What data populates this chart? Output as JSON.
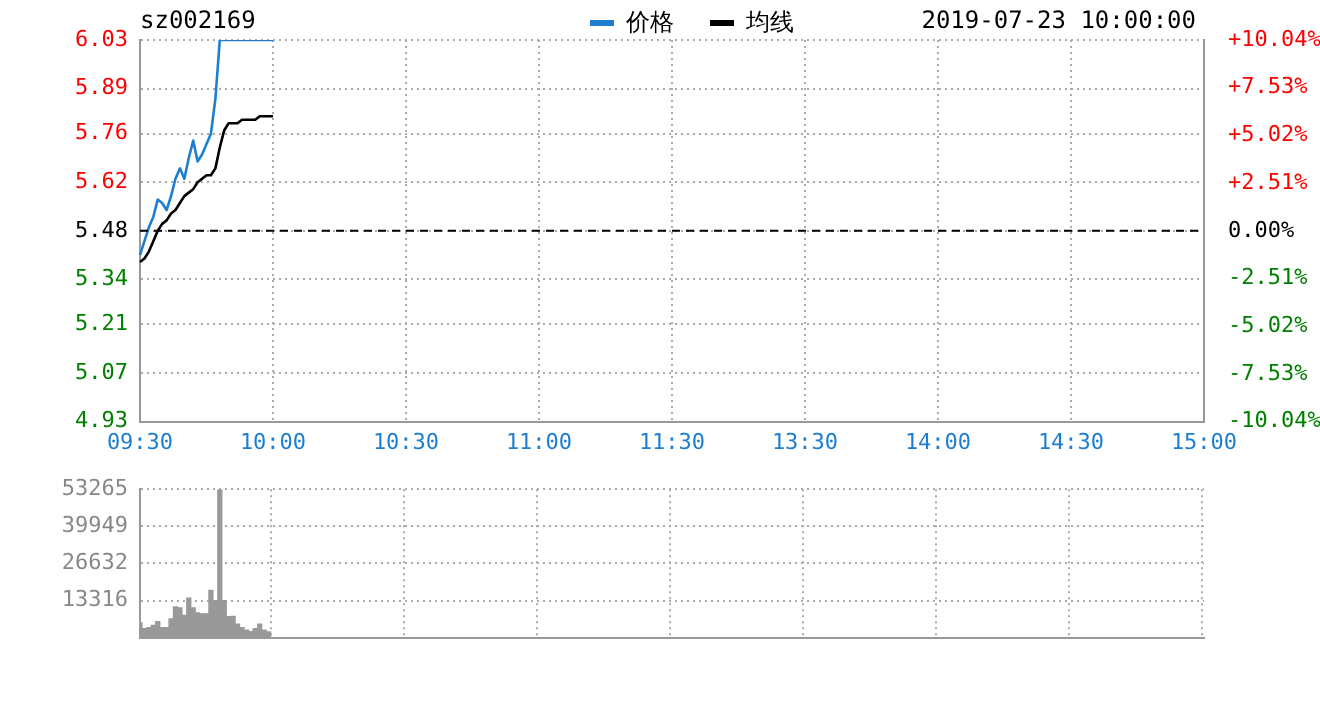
{
  "chart_data": [
    {
      "type": "line",
      "title": "sz002169",
      "annotations": [
        "2019-07-23 10:00:00"
      ],
      "legend": "top",
      "grid": true,
      "line_style": "solid",
      "marker": "none",
      "categories": [
        "09:30",
        null,
        null,
        null,
        null,
        null,
        null,
        null,
        null,
        null,
        null,
        null,
        null,
        null,
        null,
        null,
        null,
        null,
        null,
        null,
        null,
        null,
        null,
        null,
        null,
        null,
        null,
        null,
        null,
        null,
        "10:00",
        null,
        null,
        null,
        null,
        null,
        null,
        null,
        null,
        null,
        null,
        null,
        null,
        null,
        null,
        null,
        null,
        null,
        null,
        null,
        null,
        null,
        null,
        null,
        null,
        null,
        null,
        null,
        null,
        null,
        "10:30",
        null,
        null,
        null,
        null,
        null,
        null,
        null,
        null,
        null,
        null,
        null,
        null,
        null,
        null,
        null,
        null,
        null,
        null,
        null,
        null,
        null,
        null,
        null,
        null,
        null,
        null,
        null,
        null,
        null,
        "11:00",
        null,
        null,
        null,
        null,
        null,
        null,
        null,
        null,
        null,
        null,
        null,
        null,
        null,
        null,
        null,
        null,
        null,
        null,
        null,
        null,
        null,
        null,
        null,
        null,
        null,
        null,
        null,
        null,
        null,
        "11:30",
        null,
        null,
        null,
        null,
        null,
        null,
        null,
        null,
        null,
        null,
        null,
        null,
        null,
        null,
        null,
        null,
        null,
        null,
        null,
        null,
        null,
        null,
        null,
        null,
        null,
        null,
        null,
        null,
        null,
        "13:30",
        null,
        null,
        null,
        null,
        null,
        null,
        null,
        null,
        null,
        null,
        null,
        null,
        null,
        null,
        null,
        null,
        null,
        null,
        null,
        null,
        null,
        null,
        null,
        null,
        null,
        null,
        null,
        null,
        null,
        "14:00",
        null,
        null,
        null,
        null,
        null,
        null,
        null,
        null,
        null,
        null,
        null,
        null,
        null,
        null,
        null,
        null,
        null,
        null,
        null,
        null,
        null,
        null,
        null,
        null,
        null,
        null,
        null,
        null,
        null,
        "14:30",
        null,
        null,
        null,
        null,
        null,
        null,
        null,
        null,
        null,
        null,
        null,
        null,
        null,
        null,
        null,
        null,
        null,
        null,
        null,
        null,
        null,
        null,
        null,
        null,
        null,
        null,
        null,
        null,
        null,
        "15:00"
      ],
      "series": [
        {
          "name": "价格",
          "color": "#1e7fd0",
          "values": [
            5.41,
            5.45,
            5.49,
            5.52,
            5.57,
            5.56,
            5.54,
            5.58,
            5.63,
            5.66,
            5.63,
            5.69,
            5.74,
            5.68,
            5.7,
            5.73,
            5.76,
            5.86,
            6.03,
            6.03,
            6.03,
            6.03,
            6.03,
            6.03,
            6.03,
            6.03,
            6.03,
            6.03,
            6.03,
            6.03,
            6.03,
            null,
            null,
            null,
            null,
            null,
            null,
            null,
            null,
            null,
            null,
            null,
            null,
            null,
            null,
            null,
            null,
            null,
            null,
            null,
            null,
            null,
            null,
            null,
            null,
            null,
            null,
            null,
            null,
            null,
            null,
            null,
            null,
            null,
            null,
            null,
            null,
            null,
            null,
            null,
            null,
            null,
            null,
            null,
            null,
            null,
            null,
            null,
            null,
            null,
            null,
            null,
            null,
            null,
            null,
            null,
            null,
            null,
            null,
            null,
            null,
            null,
            null,
            null,
            null,
            null,
            null,
            null,
            null,
            null,
            null,
            null,
            null,
            null,
            null,
            null,
            null,
            null,
            null,
            null,
            null,
            null,
            null,
            null,
            null,
            null,
            null,
            null,
            null,
            null,
            null,
            null,
            null,
            null,
            null,
            null,
            null,
            null,
            null,
            null,
            null,
            null,
            null,
            null,
            null,
            null,
            null,
            null,
            null,
            null,
            null,
            null,
            null,
            null,
            null,
            null,
            null,
            null,
            null,
            null,
            null,
            null,
            null,
            null,
            null,
            null,
            null,
            null,
            null,
            null,
            null,
            null,
            null,
            null,
            null,
            null,
            null,
            null,
            null,
            null,
            null,
            null,
            null,
            null,
            null,
            null,
            null,
            null,
            null,
            null,
            null,
            null,
            null,
            null,
            null,
            null,
            null,
            null,
            null,
            null,
            null,
            null,
            null,
            null,
            null,
            null,
            null,
            null,
            null,
            null,
            null,
            null,
            null,
            null,
            null,
            null,
            null,
            null,
            null,
            null,
            null,
            null,
            null,
            null,
            null,
            null,
            null,
            null,
            null,
            null,
            null,
            null,
            null,
            null,
            null,
            null,
            null,
            null,
            null,
            null,
            null,
            null,
            null,
            null,
            null,
            null,
            null,
            null,
            null,
            null,
            null
          ]
        },
        {
          "name": "均线",
          "color": "#000000",
          "values": [
            5.39,
            5.4,
            5.42,
            5.45,
            5.48,
            5.5,
            5.51,
            5.53,
            5.54,
            5.56,
            5.58,
            5.59,
            5.6,
            5.62,
            5.63,
            5.64,
            5.64,
            5.66,
            5.72,
            5.77,
            5.79,
            5.79,
            5.79,
            5.8,
            5.8,
            5.8,
            5.8,
            5.81,
            5.81,
            5.81,
            5.81,
            null,
            null,
            null,
            null,
            null,
            null,
            null,
            null,
            null,
            null,
            null,
            null,
            null,
            null,
            null,
            null,
            null,
            null,
            null,
            null,
            null,
            null,
            null,
            null,
            null,
            null,
            null,
            null,
            null,
            null,
            null,
            null,
            null,
            null,
            null,
            null,
            null,
            null,
            null,
            null,
            null,
            null,
            null,
            null,
            null,
            null,
            null,
            null,
            null,
            null,
            null,
            null,
            null,
            null,
            null,
            null,
            null,
            null,
            null,
            null,
            null,
            null,
            null,
            null,
            null,
            null,
            null,
            null,
            null,
            null,
            null,
            null,
            null,
            null,
            null,
            null,
            null,
            null,
            null,
            null,
            null,
            null,
            null,
            null,
            null,
            null,
            null,
            null,
            null,
            null,
            null,
            null,
            null,
            null,
            null,
            null,
            null,
            null,
            null,
            null,
            null,
            null,
            null,
            null,
            null,
            null,
            null,
            null,
            null,
            null,
            null,
            null,
            null,
            null,
            null,
            null,
            null,
            null,
            null,
            null,
            null,
            null,
            null,
            null,
            null,
            null,
            null,
            null,
            null,
            null,
            null,
            null,
            null,
            null,
            null,
            null,
            null,
            null,
            null,
            null,
            null,
            null,
            null,
            null,
            null,
            null,
            null,
            null,
            null,
            null,
            null,
            null,
            null,
            null,
            null,
            null,
            null,
            null,
            null,
            null,
            null,
            null,
            null,
            null,
            null,
            null,
            null,
            null,
            null,
            null,
            null,
            null,
            null,
            null,
            null,
            null,
            null,
            null,
            null,
            null,
            null,
            null,
            null,
            null,
            null,
            null,
            null,
            null,
            null,
            null,
            null,
            null,
            null,
            null,
            null,
            null,
            null,
            null,
            null,
            null,
            null,
            null,
            null,
            null,
            null,
            null,
            null,
            null,
            null,
            null
          ]
        }
      ],
      "ylim": [
        4.93,
        6.03
      ],
      "yticks": [
        4.93,
        5.07,
        5.21,
        5.34,
        5.48,
        5.62,
        5.76,
        5.89,
        6.03
      ],
      "y2lim": [
        -10.04,
        10.04
      ],
      "y2ticks": [
        {
          "value": -10.04,
          "label": "-10.04%"
        },
        {
          "value": -7.53,
          "label": "-7.53%"
        },
        {
          "value": -5.02,
          "label": "-5.02%"
        },
        {
          "value": -2.51,
          "label": "-2.51%"
        },
        {
          "value": 0,
          "label": "0.00%"
        },
        {
          "value": 2.51,
          "label": "+2.51%"
        },
        {
          "value": 5.02,
          "label": "+5.02%"
        },
        {
          "value": 7.53,
          "label": "+7.53%"
        },
        {
          "value": 10.04,
          "label": "+10.04%"
        }
      ],
      "ref_lines": [
        {
          "axis": "y",
          "value": 5.48,
          "color": "#000000",
          "line_style": "dashed"
        }
      ]
    },
    {
      "type": "bar",
      "color": "#999999",
      "grid": true,
      "categories": [
        null,
        null,
        null,
        null,
        null,
        null,
        null,
        null,
        null,
        null,
        null,
        null,
        null,
        null,
        null,
        null,
        null,
        null,
        null,
        null,
        null,
        null,
        null,
        null,
        null,
        null,
        null,
        null,
        null,
        null,
        null,
        null,
        null,
        null,
        null,
        null,
        null,
        null,
        null,
        null,
        null,
        null,
        null,
        null,
        null,
        null,
        null,
        null,
        null,
        null,
        null,
        null,
        null,
        null,
        null,
        null,
        null,
        null,
        null,
        null,
        null,
        null,
        null,
        null,
        null,
        null,
        null,
        null,
        null,
        null,
        null,
        null,
        null,
        null,
        null,
        null,
        null,
        null,
        null,
        null,
        null,
        null,
        null,
        null,
        null,
        null,
        null,
        null,
        null,
        null,
        null,
        null,
        null,
        null,
        null,
        null,
        null,
        null,
        null,
        null,
        null,
        null,
        null,
        null,
        null,
        null,
        null,
        null,
        null,
        null,
        null,
        null,
        null,
        null,
        null,
        null,
        null,
        null,
        null,
        null,
        null,
        null,
        null,
        null,
        null,
        null,
        null,
        null,
        null,
        null,
        null,
        null,
        null,
        null,
        null,
        null,
        null,
        null,
        null,
        null,
        null,
        null,
        null,
        null,
        null,
        null,
        null,
        null,
        null,
        null,
        null,
        null,
        null,
        null,
        null,
        null,
        null,
        null,
        null,
        null,
        null,
        null,
        null,
        null,
        null,
        null,
        null,
        null,
        null,
        null,
        null,
        null,
        null,
        null,
        null,
        null,
        null,
        null,
        null,
        null,
        null,
        null,
        null,
        null,
        null,
        null,
        null,
        null,
        null,
        null,
        null,
        null,
        null,
        null,
        null,
        null,
        null,
        null,
        null,
        null,
        null,
        null,
        null,
        null,
        null,
        null,
        null,
        null,
        null,
        null,
        null,
        null,
        null,
        null,
        null,
        null,
        null,
        null,
        null,
        null,
        null,
        null,
        null,
        null,
        null,
        null,
        null,
        null,
        null,
        null,
        null,
        null,
        null,
        null,
        null,
        null,
        null,
        null,
        null,
        null,
        null
      ],
      "values": [
        5300,
        3200,
        3600,
        4400,
        5700,
        3600,
        3600,
        6700,
        11000,
        10700,
        8000,
        14200,
        10700,
        8900,
        8500,
        8500,
        16900,
        13300,
        53000,
        13300,
        7500,
        7600,
        4800,
        3600,
        2700,
        2100,
        3200,
        4800,
        2700,
        2000,
        null,
        null,
        null,
        null,
        null,
        null,
        null,
        null,
        null,
        null,
        null,
        null,
        null,
        null,
        null,
        null,
        null,
        null,
        null,
        null,
        null,
        null,
        null,
        null,
        null,
        null,
        null,
        null,
        null,
        null,
        null,
        null,
        null,
        null,
        null,
        null,
        null,
        null,
        null,
        null,
        null,
        null,
        null,
        null,
        null,
        null,
        null,
        null,
        null,
        null,
        null,
        null,
        null,
        null,
        null,
        null,
        null,
        null,
        null,
        null,
        null,
        null,
        null,
        null,
        null,
        null,
        null,
        null,
        null,
        null,
        null,
        null,
        null,
        null,
        null,
        null,
        null,
        null,
        null,
        null,
        null,
        null,
        null,
        null,
        null,
        null,
        null,
        null,
        null,
        null,
        null,
        null,
        null,
        null,
        null,
        null,
        null,
        null,
        null,
        null,
        null,
        null,
        null,
        null,
        null,
        null,
        null,
        null,
        null,
        null,
        null,
        null,
        null,
        null,
        null,
        null,
        null,
        null,
        null,
        null,
        null,
        null,
        null,
        null,
        null,
        null,
        null,
        null,
        null,
        null,
        null,
        null,
        null,
        null,
        null,
        null,
        null,
        null,
        null,
        null,
        null,
        null,
        null,
        null,
        null,
        null,
        null,
        null,
        null,
        null,
        null,
        null,
        null,
        null,
        null,
        null,
        null,
        null,
        null,
        null,
        null,
        null,
        null,
        null,
        null,
        null,
        null,
        null,
        null,
        null,
        null,
        null,
        null,
        null,
        null,
        null,
        null,
        null,
        null,
        null,
        null,
        null,
        null,
        null,
        null,
        null,
        null,
        null,
        null,
        null,
        null,
        null,
        null,
        null,
        null,
        null,
        null,
        null,
        null,
        null,
        null,
        null,
        null,
        null,
        null,
        null,
        null,
        null,
        null,
        null,
        null
      ],
      "ylim": [
        0,
        53265
      ],
      "yticks": [
        13316,
        26632,
        39949,
        53265
      ]
    }
  ]
}
